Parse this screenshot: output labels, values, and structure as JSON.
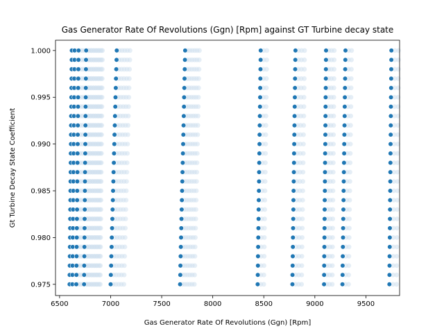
{
  "chart_data": {
    "type": "scatter",
    "title": "Gas Generator Rate Of Revolutions (Ggn) [Rpm] against GT Turbine decay state",
    "xlabel": "Gas Generator Rate Of Revolutions (Ggn) [Rpm]",
    "ylabel": "Gt Turbine Decay State Coefficient",
    "xlim": [
      6460,
      9830
    ],
    "ylim": [
      0.9738,
      1.0011
    ],
    "xticks": [
      6500,
      7000,
      7500,
      8000,
      8500,
      9000,
      9500
    ],
    "xtick_labels": [
      "6500",
      "7000",
      "7500",
      "8000",
      "8500",
      "9000",
      "9500"
    ],
    "yticks": [
      0.975,
      0.98,
      0.985,
      0.99,
      0.995,
      1.0
    ],
    "ytick_labels": [
      "0.975",
      "0.980",
      "0.985",
      "0.990",
      "0.995",
      "1.000"
    ],
    "grid": false,
    "y_levels": [
      0.975,
      0.976,
      0.977,
      0.978,
      0.979,
      0.98,
      0.981,
      0.982,
      0.983,
      0.984,
      0.985,
      0.986,
      0.987,
      0.988,
      0.989,
      0.99,
      0.991,
      0.992,
      0.993,
      0.994,
      0.995,
      0.996,
      0.997,
      0.998,
      0.999,
      1.0
    ],
    "clusters": [
      {
        "x_at_min": 6598,
        "x_at_max": 6620,
        "width": 300
      },
      {
        "x_at_min": 6740,
        "x_at_max": 6760,
        "width": 150
      },
      {
        "x_at_min": 7000,
        "x_at_max": 7060,
        "width": 130
      },
      {
        "x_at_min": 7680,
        "x_at_max": 7730,
        "width": 140
      },
      {
        "x_at_min": 8440,
        "x_at_max": 8470,
        "width": 60
      },
      {
        "x_at_min": 8780,
        "x_at_max": 8810,
        "width": 90
      },
      {
        "x_at_min": 9090,
        "x_at_max": 9110,
        "width": 80
      },
      {
        "x_at_min": 9270,
        "x_at_max": 9300,
        "width": 60
      },
      {
        "x_at_min": 9730,
        "x_at_max": 9750,
        "width": 70
      }
    ],
    "point_color": "#1f77b4",
    "halo_color": "#cfe0ef"
  }
}
